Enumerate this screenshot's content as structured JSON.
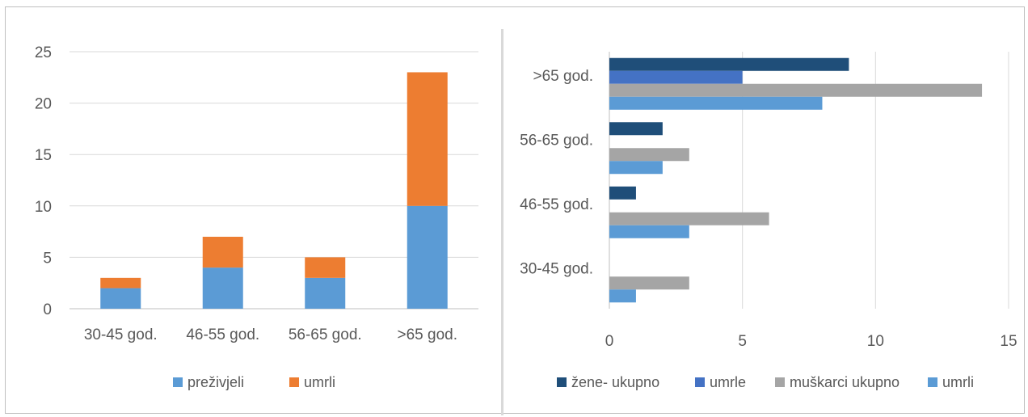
{
  "colors": {
    "prezivjeli": "#5b9bd5",
    "umrli": "#ed7d31",
    "zene_ukupno": "#1f4e79",
    "umrle": "#4472c4",
    "muskarci_ukupno": "#a5a5a5",
    "umrli_m": "#5b9bd5",
    "grid": "#d9d9d9"
  },
  "chart_data": [
    {
      "type": "bar",
      "stacked": true,
      "orientation": "vertical",
      "categories": [
        "30-45 god.",
        "46-55 god.",
        "56-65 god.",
        ">65 god."
      ],
      "series": [
        {
          "name": "preživjeli",
          "values": [
            2,
            4,
            3,
            10
          ]
        },
        {
          "name": "umrli",
          "values": [
            1,
            3,
            2,
            13
          ]
        }
      ],
      "ylim": [
        0,
        25
      ],
      "yticks": [
        "0",
        "5",
        "10",
        "15",
        "20",
        "25"
      ],
      "grid": true,
      "legend": "bottom"
    },
    {
      "type": "bar",
      "stacked": false,
      "orientation": "horizontal",
      "categories": [
        "30-45 god.",
        "46-55 god.",
        "56-65 god.",
        ">65 god."
      ],
      "series": [
        {
          "name": "žene- ukupno",
          "values": [
            0,
            1,
            2,
            9
          ]
        },
        {
          "name": "umrle",
          "values": [
            0,
            0,
            0,
            5
          ]
        },
        {
          "name": "muškarci ukupno",
          "values": [
            3,
            6,
            3,
            14
          ]
        },
        {
          "name": "umrli",
          "values": [
            1,
            3,
            2,
            8
          ]
        }
      ],
      "xlim": [
        0,
        15
      ],
      "xticks": [
        "0",
        "5",
        "10",
        "15"
      ],
      "grid": true,
      "legend": "bottom"
    }
  ]
}
